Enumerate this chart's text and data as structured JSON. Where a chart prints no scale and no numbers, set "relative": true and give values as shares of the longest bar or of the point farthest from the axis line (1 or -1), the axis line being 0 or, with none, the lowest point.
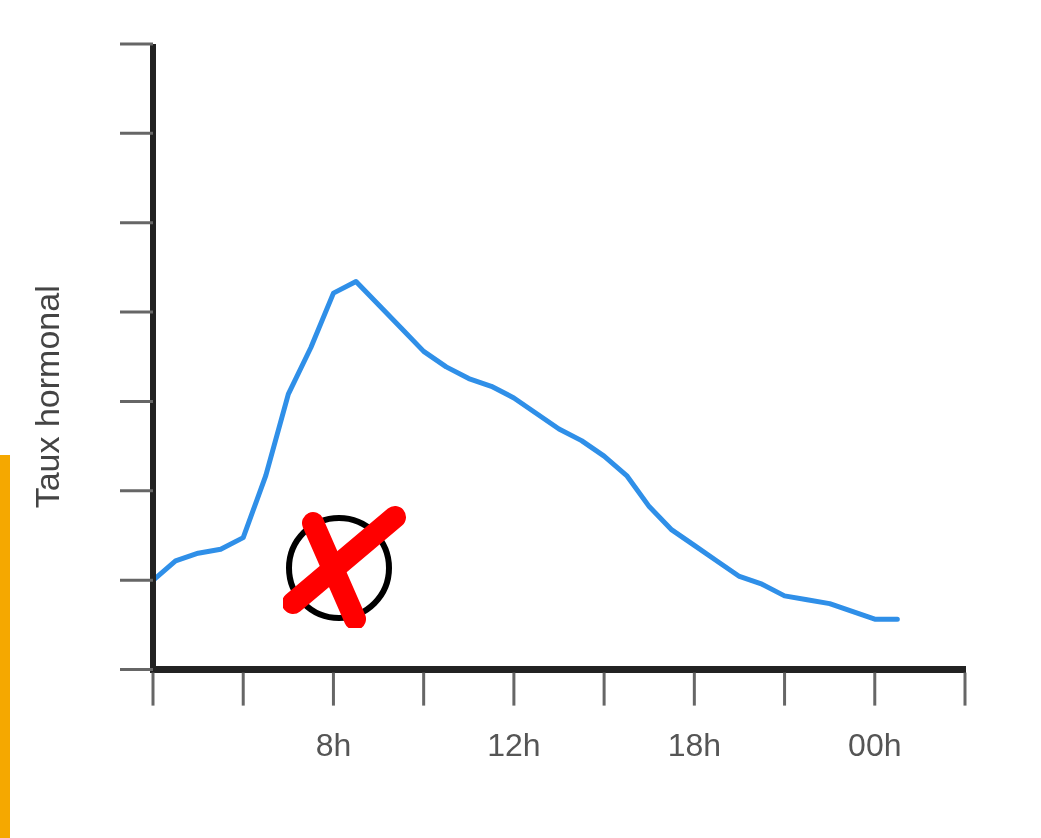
{
  "chart_data": {
    "type": "line",
    "ylabel": "Taux hormonal",
    "relative": true,
    "categories": [
      null,
      null,
      null,
      null,
      null,
      null,
      null,
      null,
      "8h",
      null,
      null,
      null,
      null,
      null,
      null,
      null,
      "12h",
      null,
      null,
      null,
      null,
      null,
      null,
      null,
      "18h",
      null,
      null,
      null,
      null,
      null,
      null,
      null,
      "00h",
      null,
      null,
      null,
      null
    ],
    "legend": false,
    "marker": "none",
    "line_style": "solid",
    "series": [
      {
        "color": "#2f8fe8",
        "values": [
          0.23,
          0.28,
          0.3,
          0.31,
          0.34,
          0.5,
          0.71,
          0.83,
          0.97,
          1.0,
          0.94,
          0.88,
          0.82,
          0.78,
          0.75,
          0.73,
          0.7,
          0.66,
          0.62,
          0.59,
          0.55,
          0.5,
          0.42,
          0.36,
          0.32,
          0.28,
          0.24,
          0.22,
          0.19,
          0.18,
          0.17,
          0.15,
          0.13,
          0.13,
          null,
          null,
          null
        ]
      }
    ]
  }
}
